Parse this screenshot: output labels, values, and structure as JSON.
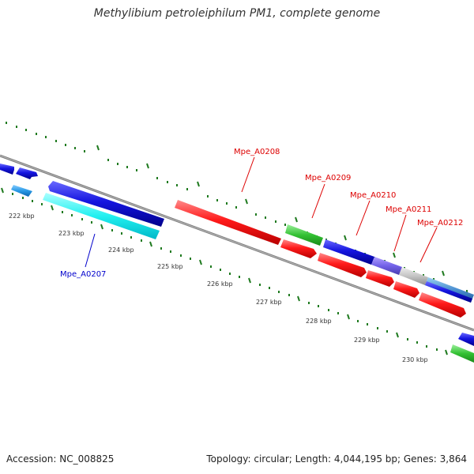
{
  "title": "Methylibium petroleiphilum PM1, complete genome",
  "accession_text": "Accession: NC_008825",
  "topology_text": "Topology: circular; Length: 4,044,195 bp; Genes: 3,864",
  "colors": {
    "backbone": "#7a7a7a",
    "tick": "#1f7a1f",
    "forward_label": "#dd0000",
    "reverse_label": "#0000cc",
    "kbp_text": "#333333"
  },
  "kbp_labels": [
    "222 kbp",
    "223 kbp",
    "224 kbp",
    "225 kbp",
    "226 kbp",
    "227 kbp",
    "228 kbp",
    "229 kbp",
    "230 kbp"
  ],
  "gene_labels": [
    {
      "id": "lbl-a0207",
      "text": "Mpe_A0207",
      "strand": "reverse"
    },
    {
      "id": "lbl-a0208",
      "text": "Mpe_A0208",
      "strand": "forward"
    },
    {
      "id": "lbl-a0209",
      "text": "Mpe_A0209",
      "strand": "forward"
    },
    {
      "id": "lbl-a0210",
      "text": "Mpe_A0210",
      "strand": "forward"
    },
    {
      "id": "lbl-a0211",
      "text": "Mpe_A0211",
      "strand": "forward"
    },
    {
      "id": "lbl-a0212",
      "text": "Mpe_A0212",
      "strand": "forward"
    }
  ]
}
